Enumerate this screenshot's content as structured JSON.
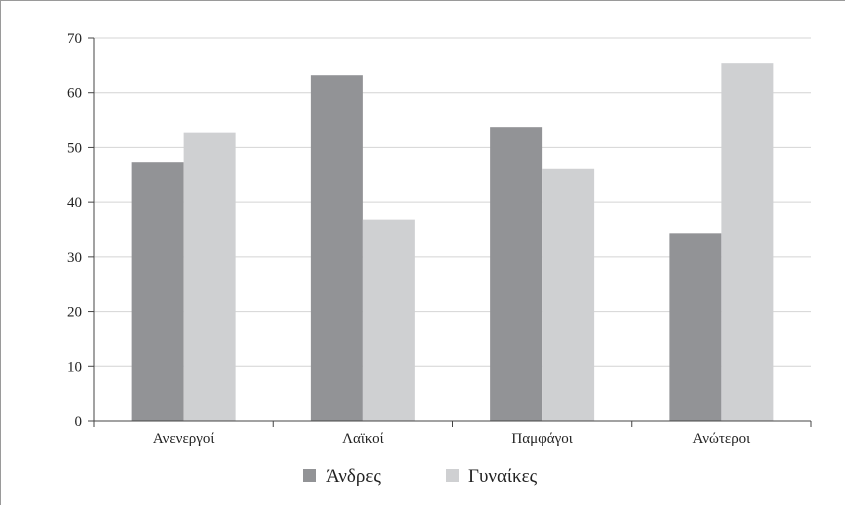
{
  "chart_data": {
    "type": "bar",
    "title": "",
    "xlabel": "",
    "ylabel": "",
    "ylim": [
      0,
      70
    ],
    "yticks": [
      0,
      10,
      20,
      30,
      40,
      50,
      60,
      70
    ],
    "grid": true,
    "legend_position": "bottom",
    "categories": [
      "Ανενεργοί",
      "Λαϊκοί",
      "Παμφάγοι",
      "Ανώτεροι"
    ],
    "series": [
      {
        "name": "Άνδρες",
        "color": "#929396",
        "values": [
          47.3,
          63.2,
          53.7,
          34.3
        ]
      },
      {
        "name": "Γυναίκες",
        "color": "#cfd0d2",
        "values": [
          52.7,
          36.8,
          46.1,
          65.4
        ]
      }
    ]
  }
}
